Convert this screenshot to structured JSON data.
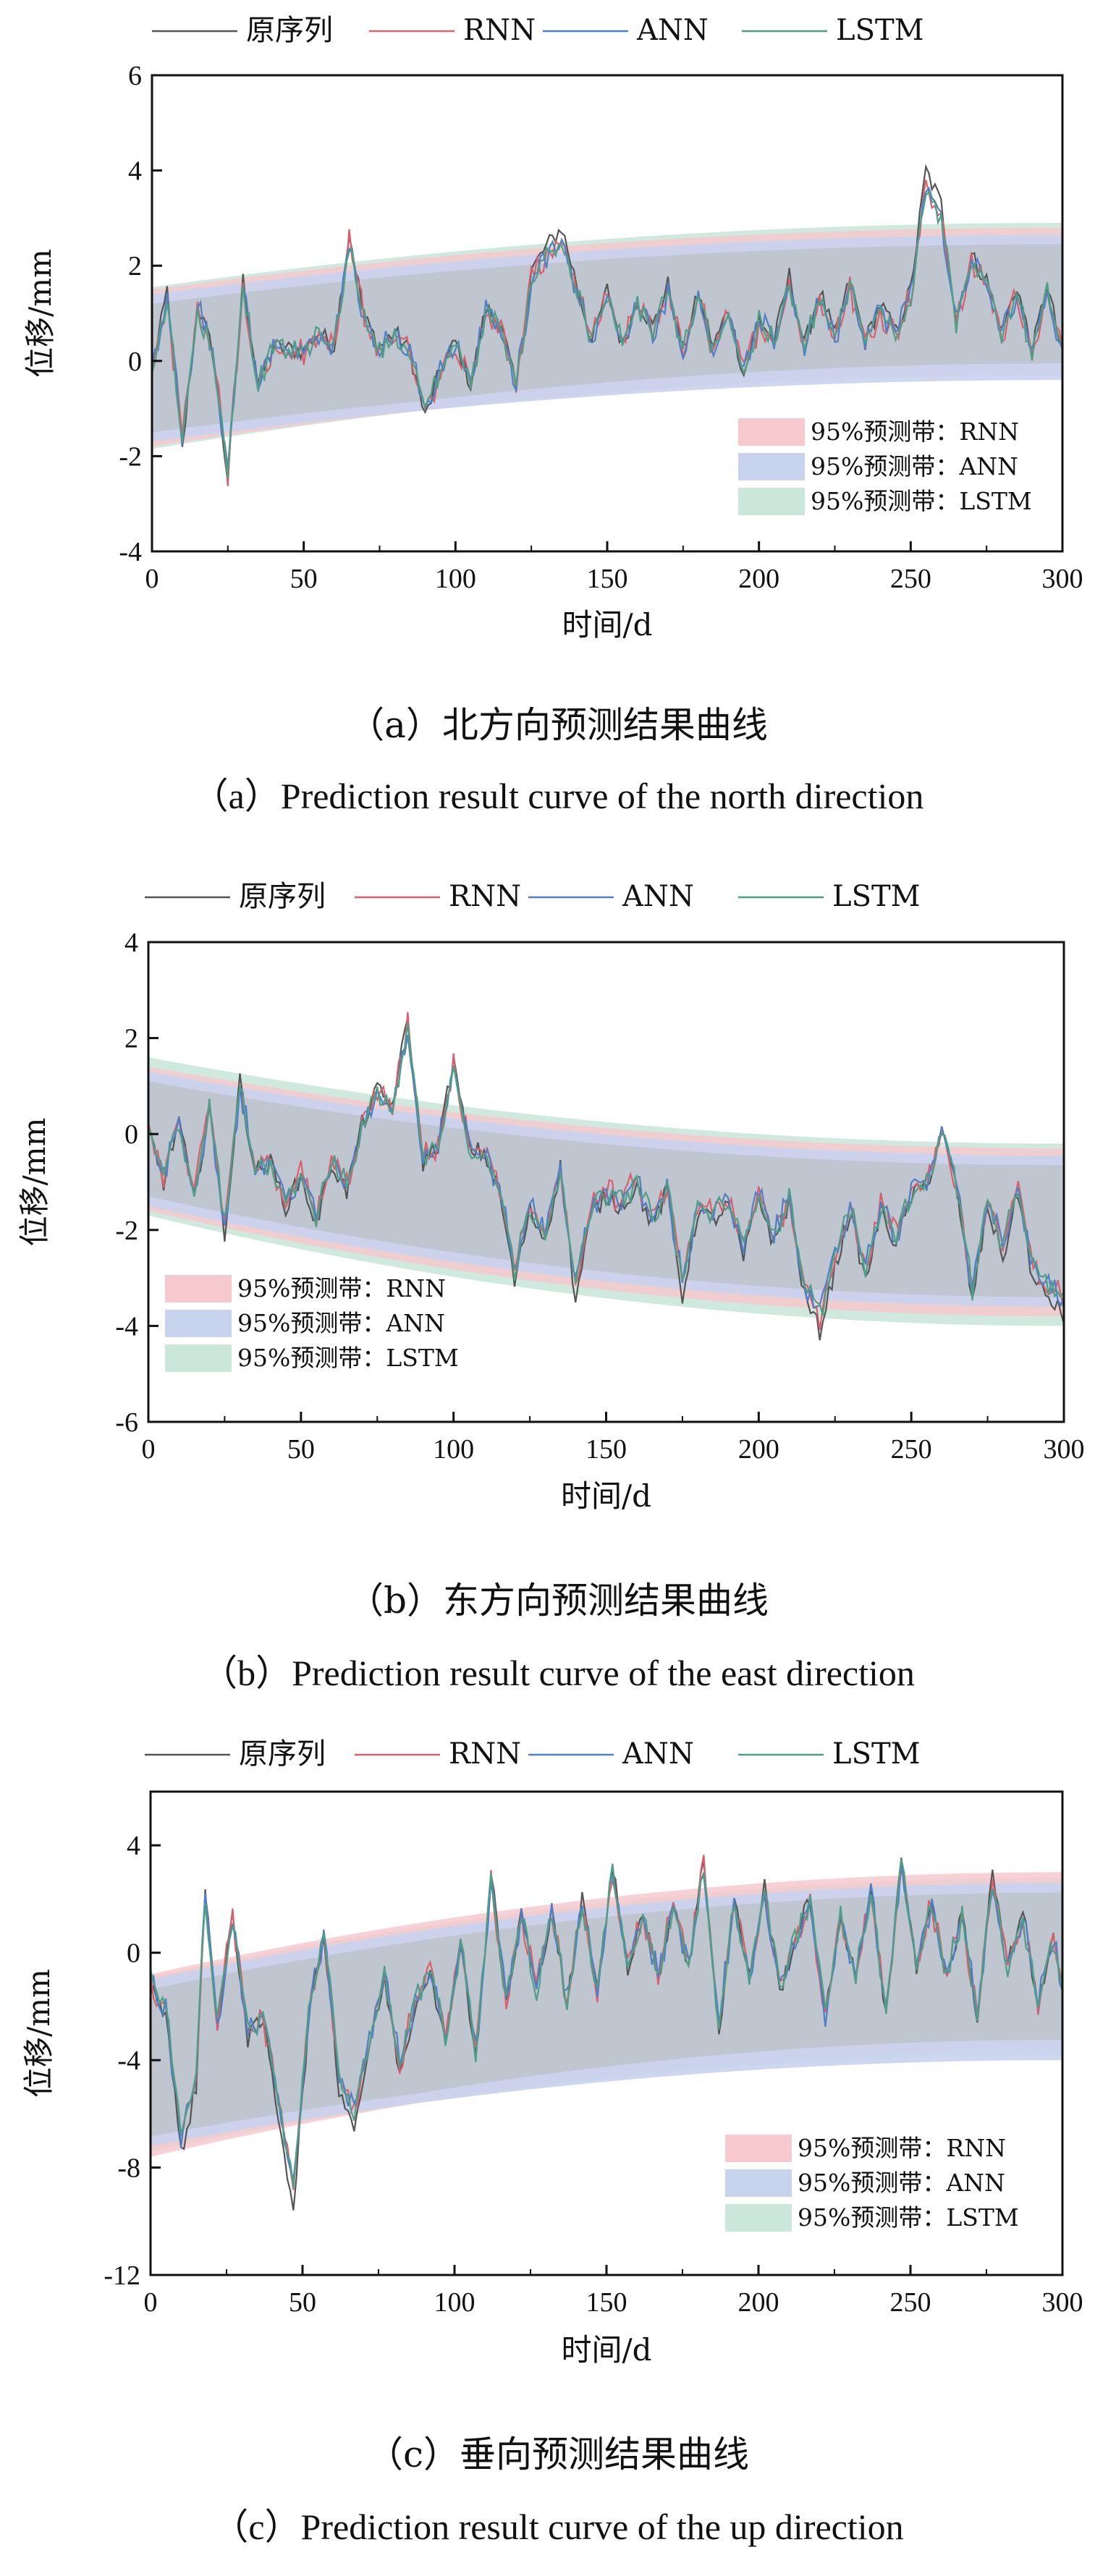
{
  "legend_labels": [
    "原序列",
    "RNN",
    "ANN",
    "LSTM"
  ],
  "band_labels": [
    "95%预测带：RNN",
    "95%预测带：ANN",
    "95%预测带：LSTM"
  ],
  "colors": {
    "original": "#555555",
    "rnn": "#d9606b",
    "ann": "#4f7fc4",
    "lstm": "#4f9e86",
    "band_rnn": "#f6c9ce",
    "band_ann": "#c8d3ee",
    "band_lstm": "#cbe7dc",
    "band_core": "#bfc5ce"
  },
  "panels": [
    {
      "caption_zh": "（a）北方向预测结果曲线",
      "caption_en": "（a）Prediction result curve of the north direction"
    },
    {
      "caption_zh": "（b）东方向预测结果曲线",
      "caption_en": "（b）Prediction result curve of the east direction"
    },
    {
      "caption_zh": "（c）垂向预测结果曲线",
      "caption_en": "（c）Prediction result curve of the up direction"
    }
  ],
  "chart_data": [
    {
      "type": "line",
      "xlabel": "时间/d",
      "ylabel": "位移/mm",
      "xlim": [
        0,
        300
      ],
      "ylim": [
        -4,
        6
      ],
      "xticks": [
        0,
        50,
        100,
        150,
        200,
        250,
        300
      ],
      "yticks": [
        -4,
        -2,
        0,
        2,
        4,
        6
      ],
      "legend_position": "top",
      "band_legend_position": "bottom-right",
      "original_keypoints": [
        [
          0,
          -0.3
        ],
        [
          5,
          1.5
        ],
        [
          10,
          -1.9
        ],
        [
          15,
          1.2
        ],
        [
          20,
          0.2
        ],
        [
          25,
          -2.5
        ],
        [
          30,
          1.7
        ],
        [
          35,
          -0.5
        ],
        [
          40,
          0.3
        ],
        [
          50,
          0.2
        ],
        [
          55,
          0.6
        ],
        [
          60,
          0.3
        ],
        [
          65,
          2.7
        ],
        [
          70,
          0.9
        ],
        [
          75,
          0.3
        ],
        [
          80,
          0.6
        ],
        [
          85,
          0.2
        ],
        [
          90,
          -1.2
        ],
        [
          95,
          -0.2
        ],
        [
          100,
          0.4
        ],
        [
          105,
          -0.5
        ],
        [
          110,
          1.1
        ],
        [
          115,
          0.8
        ],
        [
          120,
          -0.6
        ],
        [
          125,
          1.9
        ],
        [
          130,
          2.4
        ],
        [
          135,
          2.8
        ],
        [
          140,
          1.6
        ],
        [
          145,
          0.4
        ],
        [
          150,
          1.5
        ],
        [
          155,
          0.3
        ],
        [
          160,
          1.3
        ],
        [
          165,
          0.7
        ],
        [
          170,
          1.6
        ],
        [
          175,
          0.2
        ],
        [
          180,
          1.4
        ],
        [
          185,
          0.3
        ],
        [
          190,
          1.1
        ],
        [
          195,
          -0.3
        ],
        [
          200,
          0.9
        ],
        [
          205,
          0.4
        ],
        [
          210,
          1.8
        ],
        [
          215,
          0.3
        ],
        [
          220,
          1.5
        ],
        [
          225,
          0.5
        ],
        [
          230,
          1.7
        ],
        [
          235,
          0.4
        ],
        [
          240,
          1.2
        ],
        [
          245,
          0.6
        ],
        [
          250,
          1.5
        ],
        [
          255,
          4.0
        ],
        [
          260,
          3.3
        ],
        [
          265,
          0.9
        ],
        [
          270,
          2.2
        ],
        [
          275,
          1.7
        ],
        [
          280,
          0.6
        ],
        [
          285,
          1.6
        ],
        [
          290,
          0.2
        ],
        [
          295,
          1.6
        ],
        [
          300,
          0.1
        ]
      ],
      "band": {
        "x": [
          0,
          300
        ],
        "rnn_upper": [
          1.5,
          2.8
        ],
        "rnn_lower": [
          -1.8,
          -0.3
        ],
        "ann_upper": [
          1.4,
          2.65
        ],
        "ann_lower": [
          -1.7,
          -0.4
        ],
        "lstm_upper": [
          1.55,
          2.9
        ],
        "lstm_lower": [
          -1.85,
          -0.25
        ]
      }
    },
    {
      "type": "line",
      "xlabel": "时间/d",
      "ylabel": "位移/mm",
      "xlim": [
        0,
        300
      ],
      "ylim": [
        -6,
        4
      ],
      "xticks": [
        0,
        50,
        100,
        150,
        200,
        250,
        300
      ],
      "yticks": [
        -6,
        -4,
        -2,
        0,
        2,
        4
      ],
      "legend_position": "top",
      "band_legend_position": "bottom-left",
      "original_keypoints": [
        [
          0,
          0.1
        ],
        [
          5,
          -1.0
        ],
        [
          10,
          0.3
        ],
        [
          15,
          -1.4
        ],
        [
          20,
          0.6
        ],
        [
          25,
          -2.1
        ],
        [
          30,
          1.1
        ],
        [
          35,
          -0.8
        ],
        [
          40,
          -0.6
        ],
        [
          45,
          -1.5
        ],
        [
          50,
          -0.9
        ],
        [
          55,
          -1.9
        ],
        [
          60,
          -0.6
        ],
        [
          65,
          -1.2
        ],
        [
          70,
          0.2
        ],
        [
          75,
          0.9
        ],
        [
          80,
          0.6
        ],
        [
          85,
          2.4
        ],
        [
          90,
          -0.6
        ],
        [
          95,
          -0.2
        ],
        [
          100,
          1.5
        ],
        [
          105,
          -0.3
        ],
        [
          110,
          -0.4
        ],
        [
          115,
          -1.2
        ],
        [
          120,
          -3.1
        ],
        [
          125,
          -1.6
        ],
        [
          130,
          -2.2
        ],
        [
          135,
          -0.7
        ],
        [
          140,
          -3.5
        ],
        [
          145,
          -1.7
        ],
        [
          150,
          -1.3
        ],
        [
          155,
          -1.5
        ],
        [
          160,
          -1.1
        ],
        [
          165,
          -1.9
        ],
        [
          170,
          -1.2
        ],
        [
          175,
          -3.4
        ],
        [
          180,
          -1.6
        ],
        [
          185,
          -1.8
        ],
        [
          190,
          -1.5
        ],
        [
          195,
          -2.6
        ],
        [
          200,
          -1.3
        ],
        [
          205,
          -2.3
        ],
        [
          210,
          -1.4
        ],
        [
          215,
          -3.4
        ],
        [
          220,
          -4.1
        ],
        [
          225,
          -2.8
        ],
        [
          230,
          -1.6
        ],
        [
          235,
          -3.1
        ],
        [
          240,
          -1.6
        ],
        [
          245,
          -2.3
        ],
        [
          250,
          -1.3
        ],
        [
          255,
          -1.1
        ],
        [
          260,
          0.1
        ],
        [
          265,
          -1.2
        ],
        [
          270,
          -3.5
        ],
        [
          275,
          -1.5
        ],
        [
          280,
          -2.6
        ],
        [
          285,
          -1.2
        ],
        [
          290,
          -3.1
        ],
        [
          295,
          -3.4
        ],
        [
          300,
          -3.8
        ]
      ],
      "band": {
        "x": [
          0,
          300
        ],
        "rnn_upper": [
          1.4,
          -0.3
        ],
        "rnn_lower": [
          -1.6,
          -3.8
        ],
        "ann_upper": [
          1.3,
          -0.45
        ],
        "ann_lower": [
          -1.5,
          -3.6
        ],
        "lstm_upper": [
          1.6,
          -0.2
        ],
        "lstm_lower": [
          -1.7,
          -4.0
        ]
      }
    },
    {
      "type": "line",
      "xlabel": "时间/d",
      "ylabel": "位移/mm",
      "xlim": [
        0,
        300
      ],
      "ylim": [
        -12,
        6
      ],
      "xticks": [
        0,
        50,
        100,
        150,
        200,
        250,
        300
      ],
      "yticks": [
        -12,
        -8,
        -4,
        0,
        4
      ],
      "legend_position": "top",
      "band_legend_position": "bottom-right",
      "original_keypoints": [
        [
          0,
          -1.2
        ],
        [
          5,
          -2.2
        ],
        [
          10,
          -7.5
        ],
        [
          15,
          -5.0
        ],
        [
          18,
          2.4
        ],
        [
          22,
          -3.0
        ],
        [
          27,
          1.5
        ],
        [
          32,
          -3.2
        ],
        [
          37,
          -2.5
        ],
        [
          42,
          -6.0
        ],
        [
          47,
          -9.5
        ],
        [
          52,
          -2.5
        ],
        [
          57,
          0.8
        ],
        [
          62,
          -5.0
        ],
        [
          67,
          -6.5
        ],
        [
          72,
          -3.5
        ],
        [
          77,
          -1.0
        ],
        [
          82,
          -4.5
        ],
        [
          87,
          -2.0
        ],
        [
          92,
          -0.5
        ],
        [
          97,
          -3.5
        ],
        [
          102,
          0.5
        ],
        [
          107,
          -4.0
        ],
        [
          112,
          3.0
        ],
        [
          117,
          -2.0
        ],
        [
          122,
          1.5
        ],
        [
          127,
          -1.5
        ],
        [
          132,
          1.8
        ],
        [
          137,
          -2.0
        ],
        [
          142,
          2.0
        ],
        [
          147,
          -1.5
        ],
        [
          152,
          3.2
        ],
        [
          157,
          -0.5
        ],
        [
          162,
          1.5
        ],
        [
          167,
          -1.0
        ],
        [
          172,
          2.0
        ],
        [
          177,
          -0.5
        ],
        [
          182,
          3.5
        ],
        [
          187,
          -3.0
        ],
        [
          192,
          2.0
        ],
        [
          197,
          -1.0
        ],
        [
          202,
          2.5
        ],
        [
          207,
          -1.5
        ],
        [
          212,
          0.5
        ],
        [
          217,
          2.0
        ],
        [
          222,
          -2.5
        ],
        [
          227,
          1.5
        ],
        [
          232,
          -1.0
        ],
        [
          237,
          2.5
        ],
        [
          242,
          -2.5
        ],
        [
          247,
          3.5
        ],
        [
          252,
          -0.5
        ],
        [
          257,
          2.0
        ],
        [
          262,
          -1.0
        ],
        [
          267,
          1.5
        ],
        [
          272,
          -2.5
        ],
        [
          277,
          3.0
        ],
        [
          282,
          -0.5
        ],
        [
          287,
          1.5
        ],
        [
          292,
          -2.0
        ],
        [
          297,
          0.5
        ],
        [
          300,
          -1.5
        ]
      ],
      "band": {
        "x": [
          0,
          300
        ],
        "rnn_upper": [
          -0.8,
          3.0
        ],
        "rnn_lower": [
          -7.6,
          -3.6
        ],
        "ann_upper": [
          -1.0,
          2.6
        ],
        "ann_lower": [
          -7.2,
          -4.0
        ],
        "lstm_upper": [
          -0.9,
          2.8
        ],
        "lstm_lower": [
          -7.4,
          -3.8
        ]
      }
    }
  ]
}
